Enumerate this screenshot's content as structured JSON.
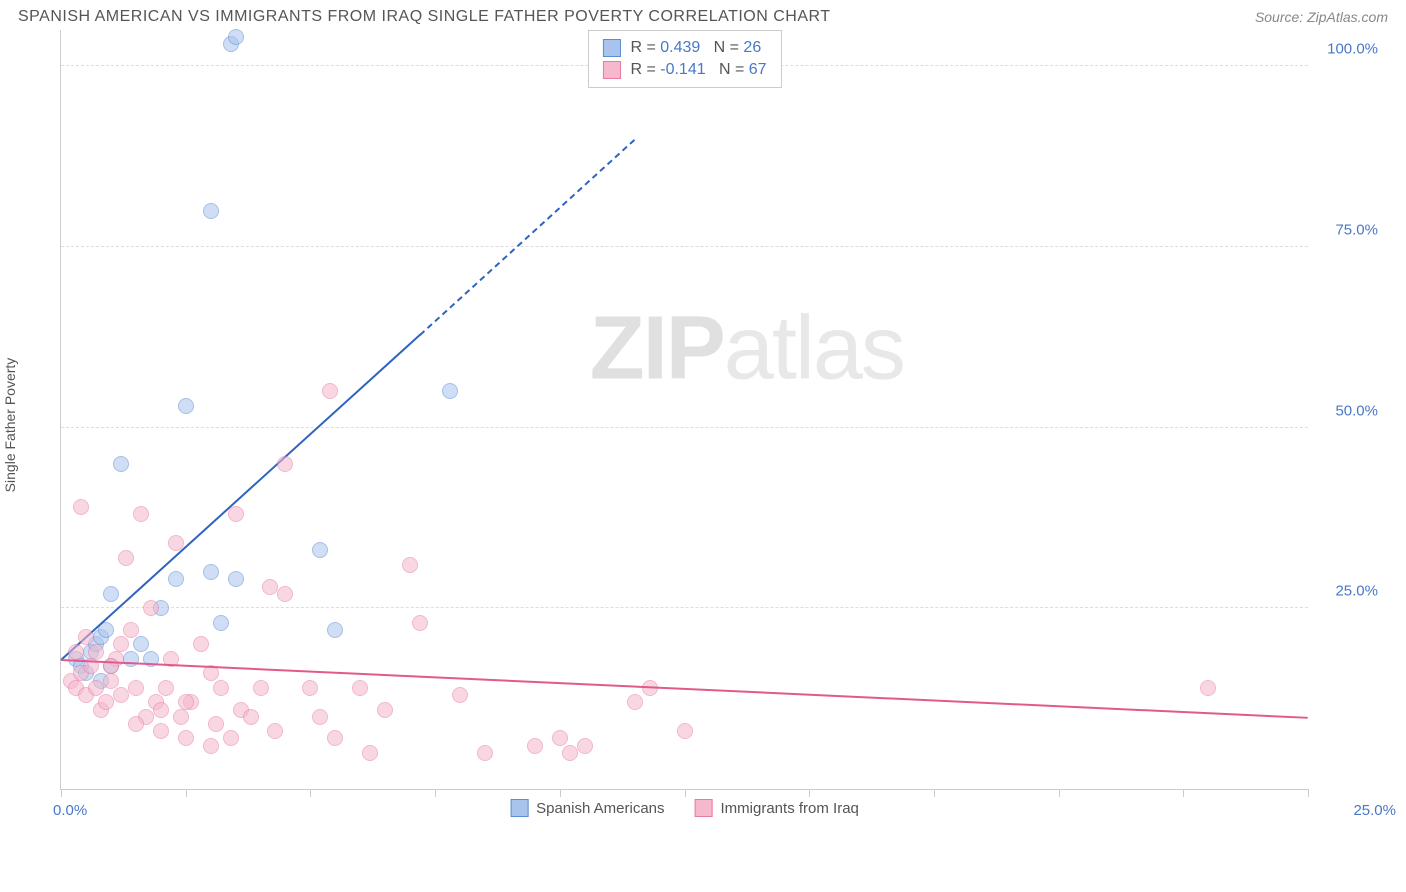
{
  "header": {
    "title": "SPANISH AMERICAN VS IMMIGRANTS FROM IRAQ SINGLE FATHER POVERTY CORRELATION CHART",
    "source": "Source: ZipAtlas.com"
  },
  "watermark": {
    "part1": "ZIP",
    "part2": "atlas"
  },
  "chart": {
    "type": "scatter",
    "y_label": "Single Father Poverty",
    "xlim": [
      0,
      25
    ],
    "ylim": [
      0,
      105
    ],
    "x_ticks_pct": [
      0,
      10,
      20,
      30,
      40,
      50,
      60,
      70,
      80,
      90,
      100
    ],
    "x_tick_labels": {
      "min": "0.0%",
      "max": "25.0%"
    },
    "y_gridlines": [
      25,
      50,
      75,
      100
    ],
    "y_tick_labels": [
      "25.0%",
      "50.0%",
      "75.0%",
      "100.0%"
    ],
    "background_color": "#ffffff",
    "grid_color": "#dddddd",
    "axis_color": "#cccccc",
    "label_color": "#555555",
    "tick_label_color": "#4878c8",
    "marker_radius": 8,
    "marker_opacity": 0.55,
    "series": [
      {
        "name": "Spanish Americans",
        "color_fill": "#a8c4ec",
        "color_stroke": "#5b8dd6",
        "R": "0.439",
        "N": "26",
        "trend": {
          "x1": 0,
          "y1": 18,
          "x2": 7.2,
          "y2": 63,
          "color": "#2f63c0",
          "width": 2,
          "dash_to": {
            "x": 11.5,
            "y": 90
          }
        },
        "points": [
          [
            0.3,
            18
          ],
          [
            0.4,
            17
          ],
          [
            0.5,
            16
          ],
          [
            0.6,
            19
          ],
          [
            0.7,
            20
          ],
          [
            0.8,
            21
          ],
          [
            0.9,
            22
          ],
          [
            1.0,
            27
          ],
          [
            1.2,
            45
          ],
          [
            1.4,
            18
          ],
          [
            1.6,
            20
          ],
          [
            1.8,
            18
          ],
          [
            2.0,
            25
          ],
          [
            2.3,
            29
          ],
          [
            2.5,
            53
          ],
          [
            3.0,
            30
          ],
          [
            3.2,
            23
          ],
          [
            3.4,
            103
          ],
          [
            3.5,
            104
          ],
          [
            3.5,
            29
          ],
          [
            3.0,
            80
          ],
          [
            5.2,
            33
          ],
          [
            5.5,
            22
          ],
          [
            7.8,
            55
          ],
          [
            1.0,
            17
          ],
          [
            0.8,
            15
          ]
        ]
      },
      {
        "name": "Immigrants from Iraq",
        "color_fill": "#f5b8cc",
        "color_stroke": "#e87ba3",
        "R": "-0.141",
        "N": "67",
        "trend": {
          "x1": 0,
          "y1": 18,
          "x2": 25,
          "y2": 10,
          "color": "#e15a8e",
          "width": 2
        },
        "points": [
          [
            0.2,
            15
          ],
          [
            0.3,
            14
          ],
          [
            0.4,
            16
          ],
          [
            0.5,
            13
          ],
          [
            0.6,
            17
          ],
          [
            0.7,
            14
          ],
          [
            0.8,
            11
          ],
          [
            0.9,
            12
          ],
          [
            1.0,
            15
          ],
          [
            1.1,
            18
          ],
          [
            1.2,
            20
          ],
          [
            1.3,
            32
          ],
          [
            1.4,
            22
          ],
          [
            1.5,
            14
          ],
          [
            1.6,
            38
          ],
          [
            1.7,
            10
          ],
          [
            1.8,
            25
          ],
          [
            1.9,
            12
          ],
          [
            2.0,
            11
          ],
          [
            2.1,
            14
          ],
          [
            2.2,
            18
          ],
          [
            2.3,
            34
          ],
          [
            2.4,
            10
          ],
          [
            2.5,
            7
          ],
          [
            2.6,
            12
          ],
          [
            2.8,
            20
          ],
          [
            3.0,
            16
          ],
          [
            3.1,
            9
          ],
          [
            3.2,
            14
          ],
          [
            3.4,
            7
          ],
          [
            3.5,
            38
          ],
          [
            3.6,
            11
          ],
          [
            3.8,
            10
          ],
          [
            4.0,
            14
          ],
          [
            4.2,
            28
          ],
          [
            4.3,
            8
          ],
          [
            4.5,
            27
          ],
          [
            4.5,
            45
          ],
          [
            5.0,
            14
          ],
          [
            5.2,
            10
          ],
          [
            5.4,
            55
          ],
          [
            5.5,
            7
          ],
          [
            6.0,
            14
          ],
          [
            6.2,
            5
          ],
          [
            6.5,
            11
          ],
          [
            7.0,
            31
          ],
          [
            7.2,
            23
          ],
          [
            8.0,
            13
          ],
          [
            8.5,
            5
          ],
          [
            9.5,
            6
          ],
          [
            10.0,
            7
          ],
          [
            10.2,
            5
          ],
          [
            10.5,
            6
          ],
          [
            11.5,
            12
          ],
          [
            11.8,
            14
          ],
          [
            12.5,
            8
          ],
          [
            23.0,
            14
          ],
          [
            0.3,
            19
          ],
          [
            0.5,
            21
          ],
          [
            0.7,
            19
          ],
          [
            1.0,
            17
          ],
          [
            1.2,
            13
          ],
          [
            1.5,
            9
          ],
          [
            2.0,
            8
          ],
          [
            2.5,
            12
          ],
          [
            3.0,
            6
          ],
          [
            0.4,
            39
          ]
        ]
      }
    ],
    "legend_top": {
      "r_label": "R =",
      "n_label": "N ="
    },
    "legend_bottom": {
      "items": [
        "Spanish Americans",
        "Immigrants from Iraq"
      ]
    }
  }
}
